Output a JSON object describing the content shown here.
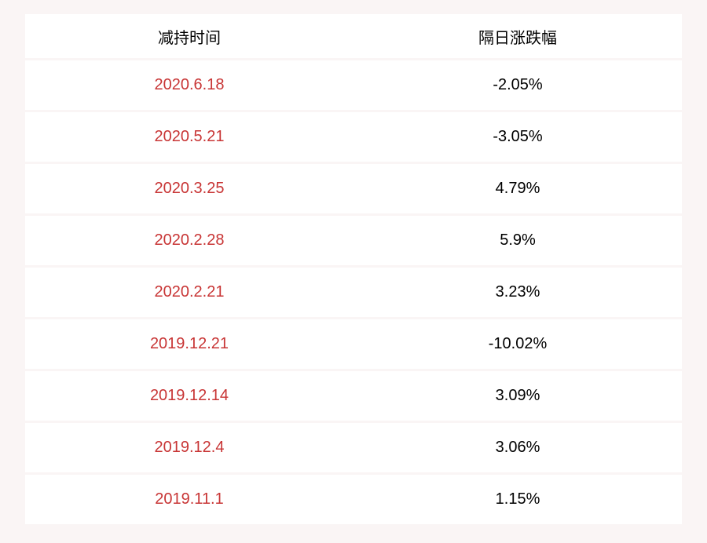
{
  "table": {
    "type": "table",
    "background_color": "#faf5f5",
    "row_background_color": "#ffffff",
    "date_color": "#c83535",
    "text_color": "#000000",
    "font_size": 20,
    "columns": [
      {
        "label": "减持时间",
        "key": "date"
      },
      {
        "label": "隔日涨跌幅",
        "key": "change"
      }
    ],
    "rows": [
      {
        "date": "2020.6.18",
        "change": "-2.05%"
      },
      {
        "date": "2020.5.21",
        "change": "-3.05%"
      },
      {
        "date": "2020.3.25",
        "change": "4.79%"
      },
      {
        "date": "2020.2.28",
        "change": "5.9%"
      },
      {
        "date": "2020.2.21",
        "change": "3.23%"
      },
      {
        "date": "2019.12.21",
        "change": "-10.02%"
      },
      {
        "date": "2019.12.14",
        "change": "3.09%"
      },
      {
        "date": "2019.12.4",
        "change": "3.06%"
      },
      {
        "date": "2019.11.1",
        "change": "1.15%"
      }
    ]
  }
}
